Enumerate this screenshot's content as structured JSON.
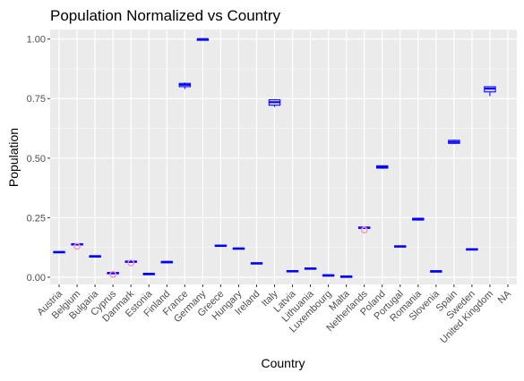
{
  "chart_data": {
    "type": "boxplot",
    "title": "Population Normalized vs Country",
    "xlabel": "Country",
    "ylabel": "Population",
    "ylim": [
      -0.03,
      1.04
    ],
    "yticks": [
      "0.00",
      "0.25",
      "0.50",
      "0.75",
      "1.00"
    ],
    "ytick_values": [
      0,
      0.25,
      0.5,
      0.75,
      1.0
    ],
    "grid": true,
    "colors": {
      "panel_bg": "#ebebeb",
      "grid_major": "#ffffff",
      "box_stroke": "#0000ff",
      "box_fill": "#cdcdfa",
      "outlier": "#ff8fcf",
      "axis_text": "#4d4d4d"
    },
    "categories": [
      "Austria",
      "Belgium",
      "Bulgaria",
      "Cyprus",
      "Danmark",
      "Estonia",
      "Finland",
      "France",
      "Germany",
      "Greece",
      "Hungary",
      "Ireland",
      "Italy",
      "Latvia",
      "Lithuania",
      "Luxembourg",
      "Malta",
      "Netherlands",
      "Poland",
      "Portugal",
      "Romania",
      "Slovenia",
      "Spain",
      "Sweden",
      "United Kingdom",
      "NA"
    ],
    "boxes": [
      {
        "q1": 0.104,
        "median": 0.106,
        "q3": 0.108,
        "lo": 0.104,
        "hi": 0.108,
        "outliers": []
      },
      {
        "q1": 0.136,
        "median": 0.138,
        "q3": 0.141,
        "lo": 0.134,
        "hi": 0.143,
        "outliers": [
          0.13
        ]
      },
      {
        "q1": 0.088,
        "median": 0.089,
        "q3": 0.09,
        "lo": 0.088,
        "hi": 0.09,
        "outliers": []
      },
      {
        "q1": 0.016,
        "median": 0.018,
        "q3": 0.02,
        "lo": 0.015,
        "hi": 0.021,
        "outliers": [
          0.012
        ]
      },
      {
        "q1": 0.064,
        "median": 0.066,
        "q3": 0.068,
        "lo": 0.063,
        "hi": 0.069,
        "outliers": [
          0.06
        ]
      },
      {
        "q1": 0.014,
        "median": 0.015,
        "q3": 0.016,
        "lo": 0.014,
        "hi": 0.016,
        "outliers": []
      },
      {
        "q1": 0.064,
        "median": 0.065,
        "q3": 0.066,
        "lo": 0.064,
        "hi": 0.066,
        "outliers": []
      },
      {
        "q1": 0.8,
        "median": 0.808,
        "q3": 0.814,
        "lo": 0.79,
        "hi": 0.818,
        "outliers": []
      },
      {
        "q1": 0.999,
        "median": 1.0,
        "q3": 1.0,
        "lo": 0.998,
        "hi": 1.0,
        "outliers": []
      },
      {
        "q1": 0.131,
        "median": 0.133,
        "q3": 0.135,
        "lo": 0.13,
        "hi": 0.136,
        "outliers": []
      },
      {
        "q1": 0.119,
        "median": 0.121,
        "q3": 0.123,
        "lo": 0.118,
        "hi": 0.124,
        "outliers": []
      },
      {
        "q1": 0.058,
        "median": 0.059,
        "q3": 0.061,
        "lo": 0.058,
        "hi": 0.061,
        "outliers": []
      },
      {
        "q1": 0.722,
        "median": 0.735,
        "q3": 0.745,
        "lo": 0.715,
        "hi": 0.748,
        "outliers": []
      },
      {
        "q1": 0.024,
        "median": 0.026,
        "q3": 0.028,
        "lo": 0.023,
        "hi": 0.029,
        "outliers": []
      },
      {
        "q1": 0.035,
        "median": 0.037,
        "q3": 0.039,
        "lo": 0.034,
        "hi": 0.04,
        "outliers": []
      },
      {
        "q1": 0.008,
        "median": 0.009,
        "q3": 0.01,
        "lo": 0.008,
        "hi": 0.01,
        "outliers": []
      },
      {
        "q1": 0.003,
        "median": 0.004,
        "q3": 0.005,
        "lo": 0.003,
        "hi": 0.005,
        "outliers": []
      },
      {
        "q1": 0.205,
        "median": 0.208,
        "q3": 0.211,
        "lo": 0.203,
        "hi": 0.213,
        "outliers": [
          0.198
        ]
      },
      {
        "q1": 0.458,
        "median": 0.463,
        "q3": 0.468,
        "lo": 0.455,
        "hi": 0.47,
        "outliers": []
      },
      {
        "q1": 0.128,
        "median": 0.13,
        "q3": 0.132,
        "lo": 0.127,
        "hi": 0.133,
        "outliers": []
      },
      {
        "q1": 0.24,
        "median": 0.244,
        "q3": 0.248,
        "lo": 0.238,
        "hi": 0.25,
        "outliers": []
      },
      {
        "q1": 0.025,
        "median": 0.026,
        "q3": 0.027,
        "lo": 0.025,
        "hi": 0.027,
        "outliers": []
      },
      {
        "q1": 0.562,
        "median": 0.568,
        "q3": 0.575,
        "lo": 0.56,
        "hi": 0.578,
        "outliers": []
      },
      {
        "q1": 0.114,
        "median": 0.117,
        "q3": 0.12,
        "lo": 0.113,
        "hi": 0.121,
        "outliers": []
      },
      {
        "q1": 0.778,
        "median": 0.792,
        "q3": 0.8,
        "lo": 0.76,
        "hi": 0.8,
        "outliers": []
      },
      null
    ]
  }
}
